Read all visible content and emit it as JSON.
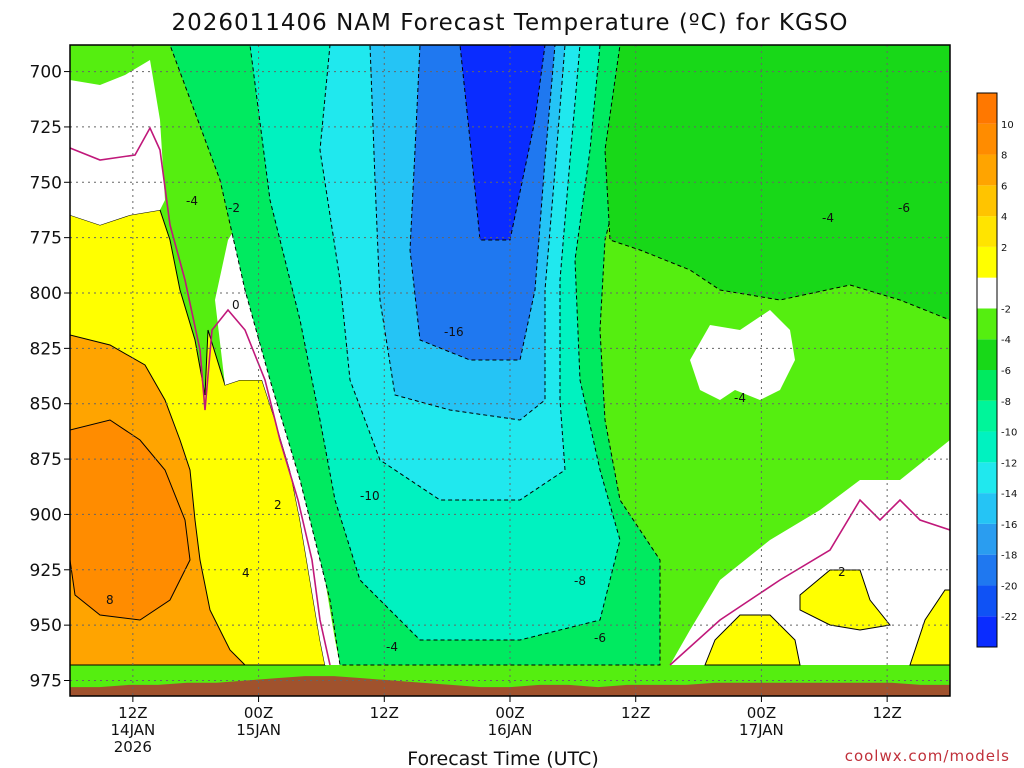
{
  "chart_data": {
    "type": "heatmap",
    "title": "2026011406 NAM Forecast Temperature (ºC) for KGSO",
    "xlabel": "Forecast Time (UTC)",
    "ylabel": "",
    "credit": "coolwx.com/models",
    "y_axis": {
      "unit": "hPa",
      "inverted": true,
      "ticks": [
        700,
        725,
        750,
        775,
        800,
        825,
        850,
        875,
        900,
        925,
        950,
        975
      ],
      "range": [
        688,
        982
      ]
    },
    "x_axis": {
      "unit": "forecast hour",
      "range": [
        0,
        84
      ],
      "ticks": [
        {
          "hour": 6,
          "lines": [
            "12Z",
            "14JAN",
            "2026"
          ]
        },
        {
          "hour": 18,
          "lines": [
            "00Z",
            "15JAN"
          ]
        },
        {
          "hour": 30,
          "lines": [
            "12Z"
          ]
        },
        {
          "hour": 42,
          "lines": [
            "00Z",
            "16JAN"
          ]
        },
        {
          "hour": 54,
          "lines": [
            "12Z"
          ]
        },
        {
          "hour": 66,
          "lines": [
            "00Z",
            "17JAN"
          ]
        },
        {
          "hour": 78,
          "lines": [
            "12Z"
          ]
        }
      ]
    },
    "grid": true,
    "colorbar": {
      "placement": "right",
      "levels": [
        -24,
        -22,
        -20,
        -18,
        -16,
        -14,
        -12,
        -10,
        -8,
        -6,
        -4,
        -2,
        0,
        2,
        4,
        6,
        8,
        10,
        12
      ],
      "tick_labels": [
        "-22",
        "-20",
        "-18",
        "-16",
        "-14",
        "-12",
        "-10",
        "-8",
        "-6",
        "-4",
        "-2",
        "2",
        "4",
        "6",
        "8",
        "10"
      ],
      "colors": [
        "#0a2cff",
        "#0f52f5",
        "#1f78f0",
        "#2a9df0",
        "#25c4f5",
        "#20e8ee",
        "#00f2c0",
        "#00f59a",
        "#00ea60",
        "#18d818",
        "#55ee10",
        "#ffffff",
        "#ffff00",
        "#ffe400",
        "#ffc400",
        "#ffa400",
        "#ff8c00",
        "#ff7800"
      ]
    },
    "contour_labels": [
      "-16",
      "-10",
      "-8",
      "-6",
      "-4",
      "-4",
      "-4",
      "-4",
      "-6",
      "-2",
      "0",
      "2",
      "4",
      "8",
      "2"
    ],
    "surface_pressure_hpa": [
      978,
      978,
      977,
      977,
      976,
      976,
      975,
      974,
      973,
      973,
      974,
      975,
      976,
      977,
      978,
      978,
      977,
      977,
      978,
      977,
      977,
      977,
      976,
      976,
      976,
      976,
      976,
      976,
      976,
      977,
      977
    ]
  }
}
